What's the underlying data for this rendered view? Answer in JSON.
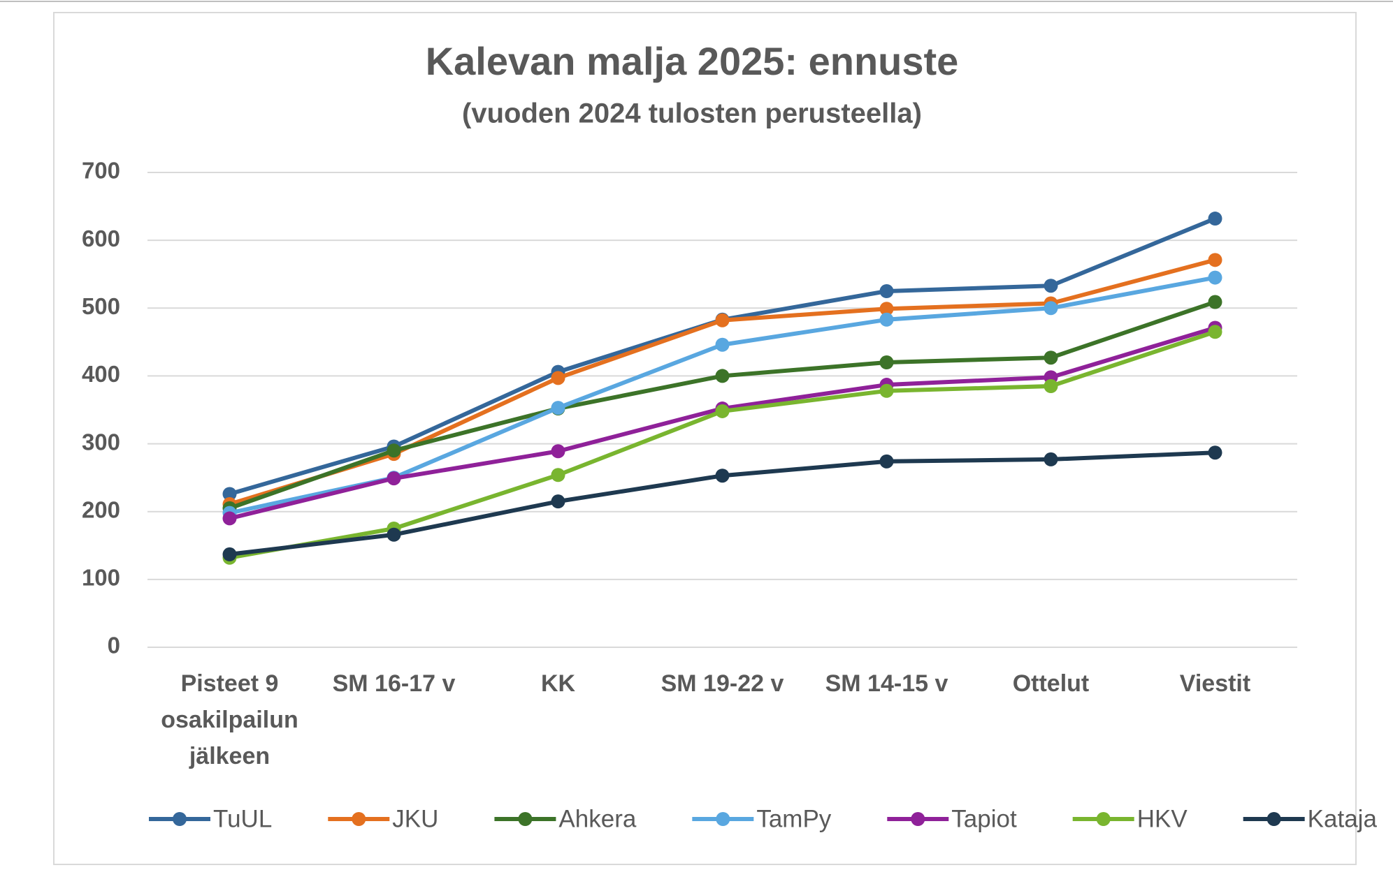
{
  "chart_data": {
    "type": "line",
    "title": "Kalevan malja 2025: ennuste",
    "subtitle": "(vuoden 2024 tulosten perusteella)",
    "categories": [
      "Pisteet 9 osakilpailun jälkeen",
      "SM 16-17 v",
      "KK",
      "SM 19-22 v",
      "SM 14-15 v",
      "Ottelut",
      "Viestit"
    ],
    "series": [
      {
        "name": "TuUL",
        "color": "#34679a",
        "values": [
          226,
          296,
          406,
          483,
          525,
          533,
          632
        ]
      },
      {
        "name": "JKU",
        "color": "#e4701f",
        "values": [
          211,
          285,
          397,
          482,
          499,
          507,
          571
        ]
      },
      {
        "name": "Ahkera",
        "color": "#3c7328",
        "values": [
          205,
          290,
          352,
          400,
          420,
          427,
          509
        ]
      },
      {
        "name": "TamPy",
        "color": "#59a7e0",
        "values": [
          198,
          250,
          353,
          446,
          483,
          500,
          545
        ]
      },
      {
        "name": "Tapiot",
        "color": "#8f2199",
        "values": [
          190,
          249,
          289,
          352,
          387,
          398,
          471
        ]
      },
      {
        "name": "HKV",
        "color": "#79b52f",
        "values": [
          132,
          175,
          254,
          348,
          378,
          385,
          465
        ]
      },
      {
        "name": "Kataja",
        "color": "#1e3950",
        "values": [
          137,
          166,
          215,
          253,
          274,
          277,
          287
        ]
      }
    ],
    "ylim": [
      0,
      700
    ],
    "yticks": [
      0,
      100,
      200,
      300,
      400,
      500,
      600,
      700
    ],
    "grid": true,
    "legend": "bottom"
  }
}
